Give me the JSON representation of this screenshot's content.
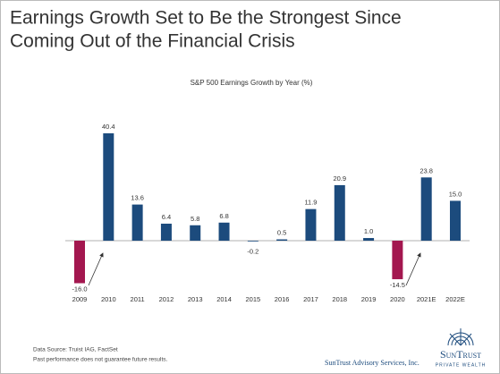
{
  "header": {
    "title_lines": [
      "Earnings Growth Set to Be the Strongest Since",
      "Coming Out of the Financial Crisis"
    ]
  },
  "chart_data": {
    "type": "bar",
    "title": "S&P 500 Earnings Growth by Year (%)",
    "categories": [
      "2009",
      "2010",
      "2011",
      "2012",
      "2013",
      "2014",
      "2015",
      "2016",
      "2017",
      "2018",
      "2019",
      "2020",
      "2021E",
      "2022E"
    ],
    "values": [
      -16.0,
      40.4,
      13.6,
      6.4,
      5.8,
      6.8,
      -0.2,
      0.5,
      11.9,
      20.9,
      1.0,
      -14.5,
      23.8,
      15.0
    ],
    "value_labels": [
      "-16.0",
      "40.4",
      "13.6",
      "6.4",
      "5.8",
      "6.8",
      "-0.2",
      "0.5",
      "11.9",
      "20.9",
      "1.0",
      "-14.5",
      "23.8",
      "15.0"
    ],
    "colors": [
      "#a3174f",
      "#1c4b7d",
      "#1c4b7d",
      "#1c4b7d",
      "#1c4b7d",
      "#1c4b7d",
      "#1c4b7d",
      "#1c4b7d",
      "#1c4b7d",
      "#1c4b7d",
      "#1c4b7d",
      "#a3174f",
      "#1c4b7d",
      "#1c4b7d"
    ]
  },
  "footer": {
    "source": "Data Source: Truist IAG, FactSet",
    "disclaimer": "Past performance does not guarantee future results.",
    "company": "SunTrust Advisory Services, Inc.",
    "logo": "SunTrust",
    "logo_sub": "PRIVATE WEALTH"
  }
}
